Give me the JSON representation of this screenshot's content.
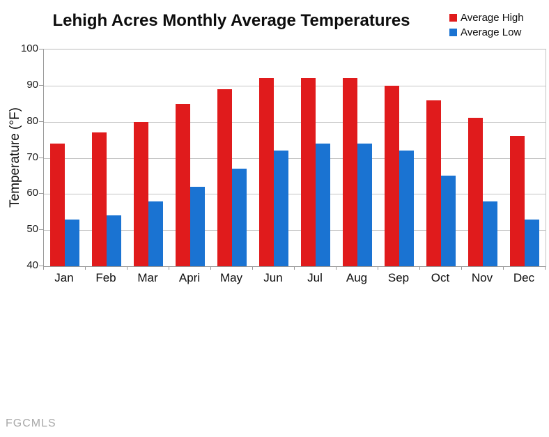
{
  "watermark": "FGCMLS",
  "chart_data": {
    "type": "bar",
    "title": "Lehigh Acres Monthly Average Temperatures",
    "xlabel": "",
    "ylabel": "Temperature (°F)",
    "categories": [
      "Jan",
      "Feb",
      "Mar",
      "Apri",
      "May",
      "Jun",
      "Jul",
      "Aug",
      "Sep",
      "Oct",
      "Nov",
      "Dec"
    ],
    "series": [
      {
        "name": "Average High",
        "color": "#e01b1c",
        "values": [
          74,
          77,
          80,
          85,
          89,
          92,
          92,
          92,
          90,
          86,
          81,
          76
        ]
      },
      {
        "name": "Average Low",
        "color": "#1a73d2",
        "values": [
          53,
          54,
          58,
          62,
          67,
          72,
          74,
          74,
          72,
          65,
          58,
          53
        ]
      }
    ],
    "ylim": [
      40,
      100
    ],
    "ytick_step": 10,
    "grid": true,
    "legend_position": "top-right",
    "colors": {
      "grid": "#c3c3c3",
      "axis": "#979797",
      "text": "#0d0d0d",
      "watermark": "#a9a9a9"
    }
  }
}
